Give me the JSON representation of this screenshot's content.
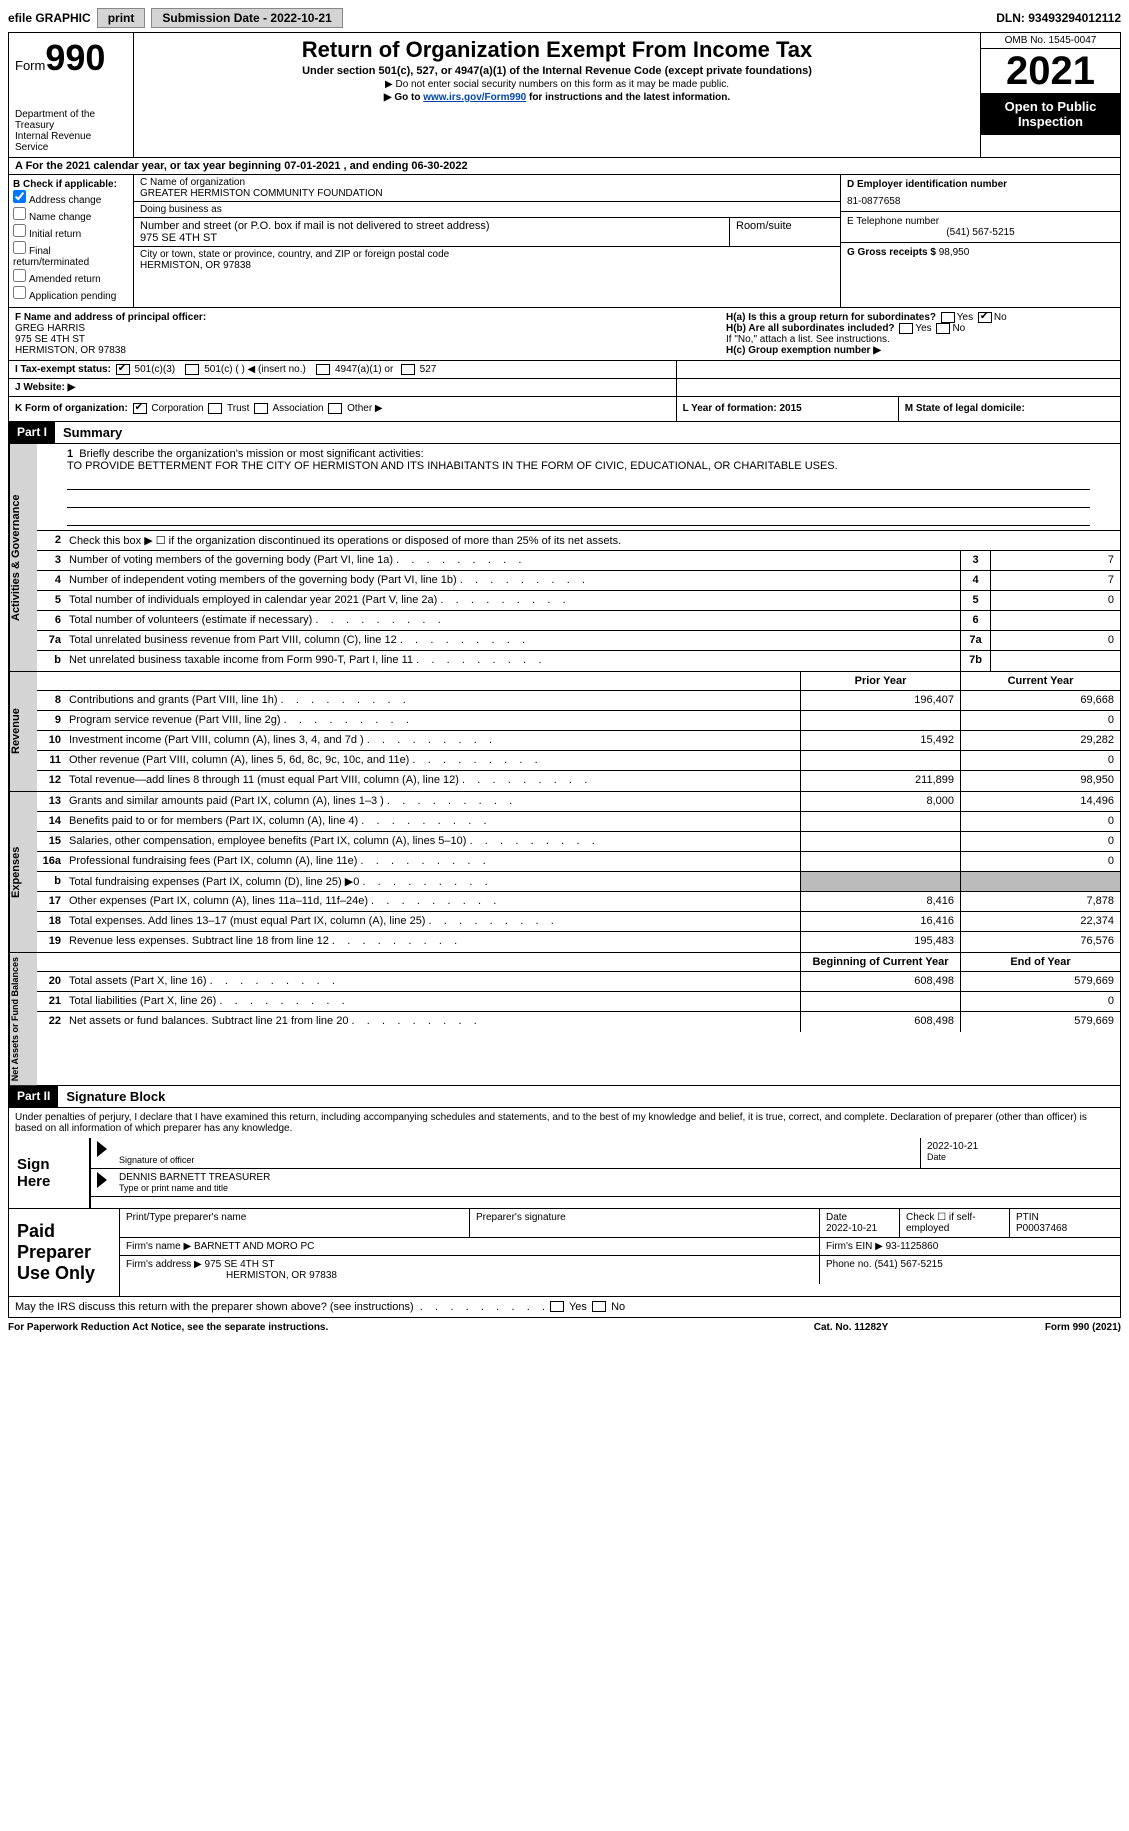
{
  "topbar": {
    "efile": "efile GRAPHIC",
    "print": "print",
    "sub_label": "Submission Date - ",
    "sub_date": "2022-10-21",
    "dln_label": "DLN: ",
    "dln": "93493294012112"
  },
  "header": {
    "form_word": "Form",
    "form_num": "990",
    "dept": "Department of the Treasury",
    "irs": "Internal Revenue Service",
    "title": "Return of Organization Exempt From Income Tax",
    "sub": "Under section 501(c), 527, or 4947(a)(1) of the Internal Revenue Code (except private foundations)",
    "warn": "▶ Do not enter social security numbers on this form as it may be made public.",
    "goto_pre": "▶ Go to ",
    "goto_link": "www.irs.gov/Form990",
    "goto_post": " for instructions and the latest information.",
    "omb": "OMB No. 1545-0047",
    "year": "2021",
    "open": "Open to Public Inspection"
  },
  "row_a": "A For the 2021 calendar year, or tax year beginning 07-01-2021    , and ending 06-30-2022",
  "col_b": {
    "label": "B Check if applicable:",
    "items": [
      {
        "txt": "Address change",
        "checked": true
      },
      {
        "txt": "Name change",
        "checked": false
      },
      {
        "txt": "Initial return",
        "checked": false
      },
      {
        "txt": "Final return/terminated",
        "checked": false
      },
      {
        "txt": "Amended return",
        "checked": false
      },
      {
        "txt": "Application pending",
        "checked": false
      }
    ]
  },
  "col_c": {
    "name_lbl": "C Name of organization",
    "name": "GREATER HERMISTON COMMUNITY FOUNDATION",
    "dba": "Doing business as",
    "addr_lbl": "Number and street (or P.O. box if mail is not delivered to street address)",
    "room": "Room/suite",
    "addr": "975 SE 4TH ST",
    "city_lbl": "City or town, state or province, country, and ZIP or foreign postal code",
    "city": "HERMISTON, OR  97838"
  },
  "col_d": {
    "ein_lbl": "D Employer identification number",
    "ein": "81-0877658",
    "tel_lbl": "E Telephone number",
    "tel": "(541) 567-5215",
    "gross_lbl": "G Gross receipts $ ",
    "gross": "98,950"
  },
  "row_f": {
    "f_lbl": "F Name and address of principal officer:",
    "f_name": "GREG HARRIS",
    "f_addr1": "975 SE 4TH ST",
    "f_addr2": "HERMISTON, OR  97838",
    "ha": "H(a)  Is this a group return for subordinates?",
    "hb": "H(b)  Are all subordinates included?",
    "hb_note": "If \"No,\" attach a list. See instructions.",
    "hc": "H(c)  Group exemption number ▶",
    "yes": "Yes",
    "no": "No"
  },
  "row_i": {
    "lbl": "I Tax-exempt status:",
    "o1": "501(c)(3)",
    "o2": "501(c) (  ) ◀ (insert no.)",
    "o3": "4947(a)(1) or",
    "o4": "527"
  },
  "row_j": {
    "lbl": "J Website: ▶"
  },
  "row_k": {
    "k_lbl": "K Form of organization:",
    "k1": "Corporation",
    "k2": "Trust",
    "k3": "Association",
    "k4": "Other ▶",
    "l": "L Year of formation: 2015",
    "m": "M State of legal domicile:"
  },
  "part1": {
    "hdr": "Part I",
    "title": "Summary"
  },
  "s1": {
    "tab": "Activities & Governance",
    "l1": "Briefly describe the organization's mission or most significant activities:",
    "l1v": "TO PROVIDE BETTERMENT FOR THE CITY OF HERMISTON AND ITS INHABITANTS IN THE FORM OF CIVIC, EDUCATIONAL, OR CHARITABLE USES.",
    "l2": "Check this box ▶ ☐ if the organization discontinued its operations or disposed of more than 25% of its net assets.",
    "rows": [
      {
        "n": "3",
        "t": "Number of voting members of the governing body (Part VI, line 1a)",
        "b": "3",
        "v": "7"
      },
      {
        "n": "4",
        "t": "Number of independent voting members of the governing body (Part VI, line 1b)",
        "b": "4",
        "v": "7"
      },
      {
        "n": "5",
        "t": "Total number of individuals employed in calendar year 2021 (Part V, line 2a)",
        "b": "5",
        "v": "0"
      },
      {
        "n": "6",
        "t": "Total number of volunteers (estimate if necessary)",
        "b": "6",
        "v": ""
      },
      {
        "n": "7a",
        "t": "Total unrelated business revenue from Part VIII, column (C), line 12",
        "b": "7a",
        "v": "0"
      },
      {
        "n": "b",
        "t": "Net unrelated business taxable income from Form 990-T, Part I, line 11",
        "b": "7b",
        "v": ""
      }
    ]
  },
  "cols": {
    "py": "Prior Year",
    "cy": "Current Year",
    "bcy": "Beginning of Current Year",
    "eoy": "End of Year"
  },
  "s2": {
    "tab": "Revenue",
    "rows": [
      {
        "n": "8",
        "t": "Contributions and grants (Part VIII, line 1h)",
        "p": "196,407",
        "c": "69,668"
      },
      {
        "n": "9",
        "t": "Program service revenue (Part VIII, line 2g)",
        "p": "",
        "c": "0"
      },
      {
        "n": "10",
        "t": "Investment income (Part VIII, column (A), lines 3, 4, and 7d )",
        "p": "15,492",
        "c": "29,282"
      },
      {
        "n": "11",
        "t": "Other revenue (Part VIII, column (A), lines 5, 6d, 8c, 9c, 10c, and 11e)",
        "p": "",
        "c": "0"
      },
      {
        "n": "12",
        "t": "Total revenue—add lines 8 through 11 (must equal Part VIII, column (A), line 12)",
        "p": "211,899",
        "c": "98,950"
      }
    ]
  },
  "s3": {
    "tab": "Expenses",
    "rows": [
      {
        "n": "13",
        "t": "Grants and similar amounts paid (Part IX, column (A), lines 1–3 )",
        "p": "8,000",
        "c": "14,496"
      },
      {
        "n": "14",
        "t": "Benefits paid to or for members (Part IX, column (A), line 4)",
        "p": "",
        "c": "0"
      },
      {
        "n": "15",
        "t": "Salaries, other compensation, employee benefits (Part IX, column (A), lines 5–10)",
        "p": "",
        "c": "0"
      },
      {
        "n": "16a",
        "t": "Professional fundraising fees (Part IX, column (A), line 11e)",
        "p": "",
        "c": "0"
      },
      {
        "n": "b",
        "t": "Total fundraising expenses (Part IX, column (D), line 25) ▶0",
        "p": "—shade—",
        "c": "—shade—"
      },
      {
        "n": "17",
        "t": "Other expenses (Part IX, column (A), lines 11a–11d, 11f–24e)",
        "p": "8,416",
        "c": "7,878"
      },
      {
        "n": "18",
        "t": "Total expenses. Add lines 13–17 (must equal Part IX, column (A), line 25)",
        "p": "16,416",
        "c": "22,374"
      },
      {
        "n": "19",
        "t": "Revenue less expenses. Subtract line 18 from line 12",
        "p": "195,483",
        "c": "76,576"
      }
    ]
  },
  "s4": {
    "tab": "Net Assets or Fund Balances",
    "rows": [
      {
        "n": "20",
        "t": "Total assets (Part X, line 16)",
        "p": "608,498",
        "c": "579,669"
      },
      {
        "n": "21",
        "t": "Total liabilities (Part X, line 26)",
        "p": "",
        "c": "0"
      },
      {
        "n": "22",
        "t": "Net assets or fund balances. Subtract line 21 from line 20",
        "p": "608,498",
        "c": "579,669"
      }
    ]
  },
  "part2": {
    "hdr": "Part II",
    "title": "Signature Block"
  },
  "sig": {
    "decl": "Under penalties of perjury, I declare that I have examined this return, including accompanying schedules and statements, and to the best of my knowledge and belief, it is true, correct, and complete. Declaration of preparer (other than officer) is based on all information of which preparer has any knowledge.",
    "sign_here": "Sign Here",
    "sig_of": "Signature of officer",
    "date": "Date",
    "date_v": "2022-10-21",
    "name": "DENNIS BARNETT TREASURER",
    "name_lbl": "Type or print name and title"
  },
  "prep": {
    "lbl": "Paid Preparer Use Only",
    "r1": {
      "a": "Print/Type preparer's name",
      "b": "Preparer's signature",
      "c": "Date",
      "cv": "2022-10-21",
      "d": "Check ☐ if self-employed",
      "e": "PTIN",
      "ev": "P00037468"
    },
    "r2": {
      "a": "Firm's name    ▶",
      "av": "BARNETT AND MORO PC",
      "b": "Firm's EIN ▶",
      "bv": "93-1125860"
    },
    "r3": {
      "a": "Firm's address ▶",
      "av": "975 SE 4TH ST",
      "av2": "HERMISTON, OR  97838",
      "b": "Phone no.",
      "bv": "(541) 567-5215"
    }
  },
  "may": "May the IRS discuss this return with the preparer shown above? (see instructions)",
  "footer": {
    "a": "For Paperwork Reduction Act Notice, see the separate instructions.",
    "b": "Cat. No. 11282Y",
    "c": "Form 990 (2021)"
  }
}
